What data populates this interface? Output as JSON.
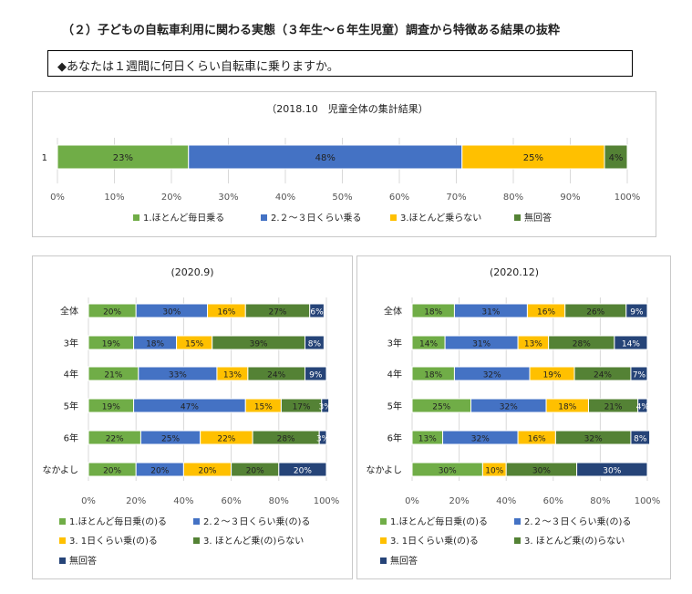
{
  "heading": "（２）子どもの自転車利用に関わる実態（３年生～６年生児童）調査から特徴ある結果の抜粋",
  "question": "◆あなたは１週間に何日くらい自転車に乗りますか。",
  "colors": {
    "green": "#70ad47",
    "blue": "#4472c4",
    "yellow": "#ffc000",
    "darkgreen": "#548235",
    "navy": "#264478"
  },
  "chart_data": [
    {
      "type": "bar",
      "orientation": "horizontal",
      "stacked": true,
      "title": "（2018.10　児童全体の集計結果）",
      "categories": [
        "1"
      ],
      "xlim": [
        0,
        100
      ],
      "xticks": [
        "0%",
        "10%",
        "20%",
        "30%",
        "40%",
        "50%",
        "60%",
        "70%",
        "80%",
        "90%",
        "100%"
      ],
      "series": [
        {
          "name": "1.ほとんど毎日乗る",
          "values": [
            23
          ]
        },
        {
          "name": "2.２～３日くらい乗る",
          "values": [
            48
          ]
        },
        {
          "name": "3.ほとんど乗らない",
          "values": [
            25
          ]
        },
        {
          "name": "無回答",
          "values": [
            4
          ]
        }
      ],
      "legend": "bottom"
    },
    {
      "type": "bar",
      "orientation": "horizontal",
      "stacked": true,
      "title": "(2020.9)",
      "categories": [
        "全体",
        "3年",
        "4年",
        "5年",
        "6年",
        "なかよし"
      ],
      "xlim": [
        0,
        100
      ],
      "xticks": [
        "0%",
        "20%",
        "40%",
        "60%",
        "80%",
        "100%"
      ],
      "series": [
        {
          "name": "1.ほとんど毎日乗(の)る",
          "values": [
            20,
            19,
            21,
            19,
            22,
            20
          ]
        },
        {
          "name": "2.２～３日くらい乗(の)る",
          "values": [
            30,
            18,
            33,
            47,
            25,
            20
          ]
        },
        {
          "name": "3. 1日くらい乗(の)る",
          "values": [
            16,
            15,
            13,
            15,
            22,
            20
          ]
        },
        {
          "name": "3. ほとんど乗(の)らない",
          "values": [
            27,
            39,
            24,
            17,
            28,
            20
          ]
        },
        {
          "name": "無回答",
          "values": [
            6,
            8,
            9,
            3,
            3,
            20
          ]
        }
      ],
      "legend": "bottom"
    },
    {
      "type": "bar",
      "orientation": "horizontal",
      "stacked": true,
      "title": "(2020.12)",
      "categories": [
        "全体",
        "3年",
        "4年",
        "5年",
        "6年",
        "なかよし"
      ],
      "xlim": [
        0,
        100
      ],
      "xticks": [
        "0%",
        "20%",
        "40%",
        "60%",
        "80%",
        "100%"
      ],
      "series": [
        {
          "name": "1.ほとんど毎日乗(の)る",
          "values": [
            18,
            14,
            18,
            25,
            13,
            30
          ]
        },
        {
          "name": "2.２～３日くらい乗(の)る",
          "values": [
            31,
            31,
            32,
            32,
            32,
            0
          ]
        },
        {
          "name": "3. 1日くらい乗(の)る",
          "values": [
            16,
            13,
            19,
            18,
            16,
            10
          ]
        },
        {
          "name": "3. ほとんど乗(の)らない",
          "values": [
            26,
            28,
            24,
            21,
            32,
            30
          ]
        },
        {
          "name": "無回答",
          "values": [
            9,
            14,
            7,
            4,
            8,
            30
          ]
        }
      ],
      "legend": "bottom"
    }
  ]
}
